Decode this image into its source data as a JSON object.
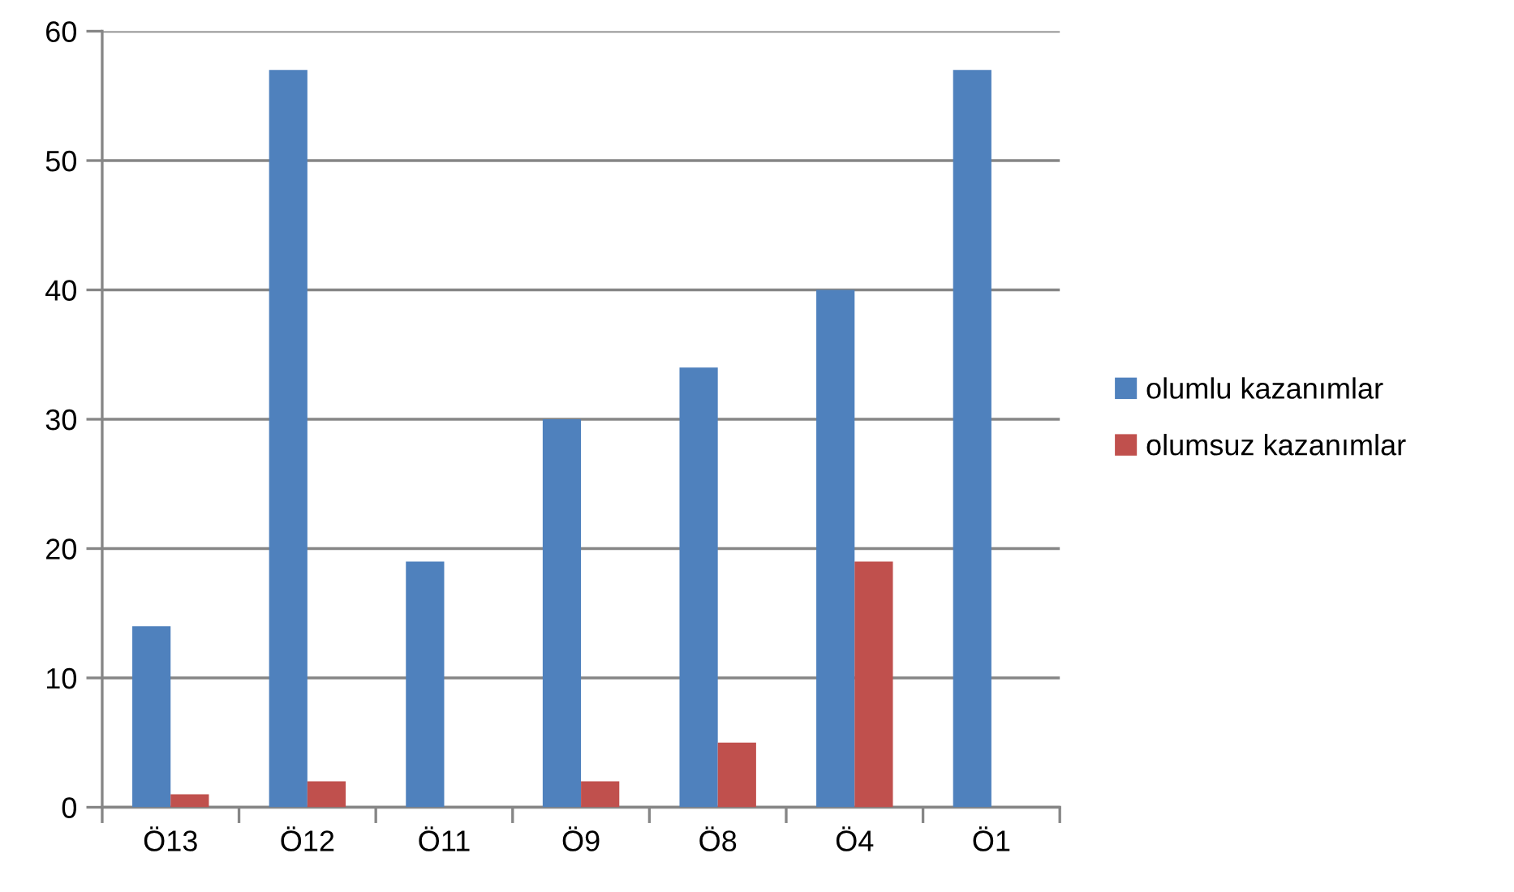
{
  "chart_data": {
    "type": "bar",
    "categories": [
      "Ö13",
      "Ö12",
      "Ö11",
      "Ö9",
      "Ö8",
      "Ö4",
      "Ö1"
    ],
    "series": [
      {
        "name": "olumlu kazanımlar",
        "color": "#4f81bd",
        "values": [
          14,
          57,
          19,
          30,
          34,
          40,
          57
        ]
      },
      {
        "name": "olumsuz kazanımlar",
        "color": "#c0504d",
        "values": [
          1,
          2,
          null,
          2,
          5,
          19,
          null
        ]
      }
    ],
    "ylim": [
      0,
      60
    ],
    "yticks": [
      0,
      10,
      20,
      30,
      40,
      50,
      60
    ],
    "grid": "y",
    "legend": "right"
  }
}
